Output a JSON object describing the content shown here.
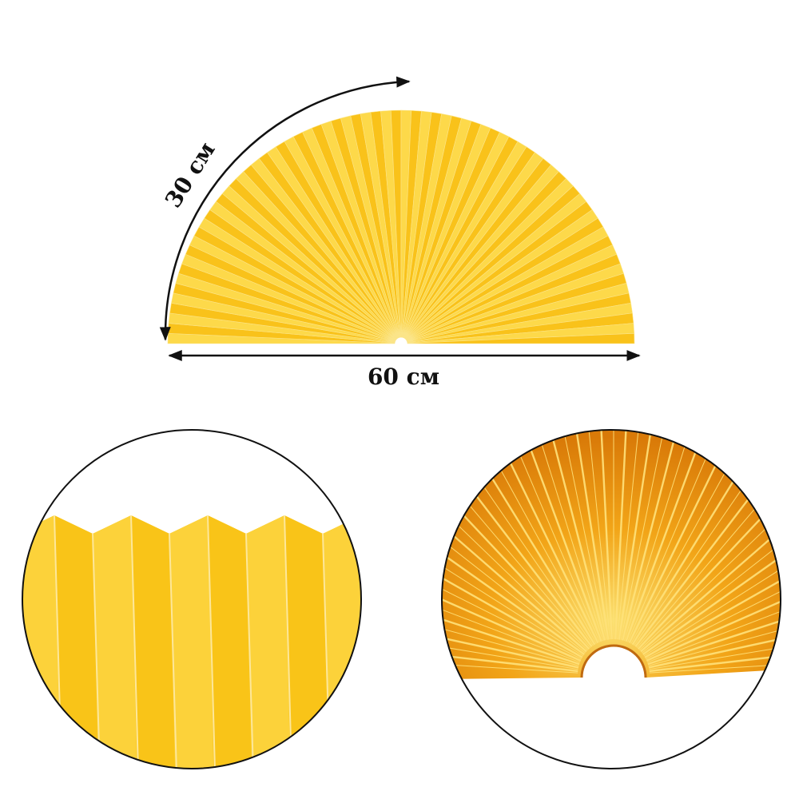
{
  "dimensions": {
    "arc_label": "30 см",
    "width_label": "60 см"
  },
  "colors": {
    "fan_yellow": "#f9c21a",
    "fan_light": "#fdd94a",
    "fan_crease": "#fbe58a",
    "detail_orange": "#e58a10",
    "outline": "#111111"
  },
  "icons": {
    "arc_arrow": "double-headed-curved-arrow",
    "width_arrow": "double-headed-straight-arrow"
  }
}
